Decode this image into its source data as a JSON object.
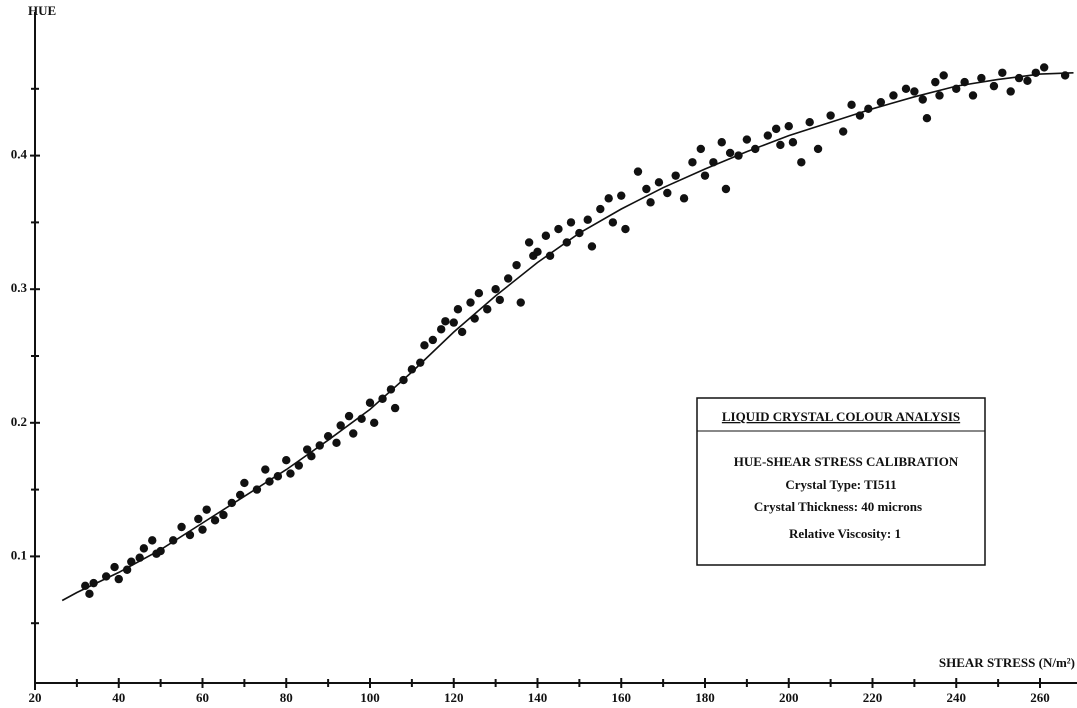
{
  "chart_data": {
    "type": "scatter",
    "ylabel": "HUE",
    "xlabel": "SHEAR STRESS (N/m²)",
    "xlim": [
      20,
      268
    ],
    "ylim": [
      0,
      0.5
    ],
    "xticks": [
      20,
      40,
      60,
      80,
      100,
      120,
      140,
      160,
      180,
      200,
      220,
      240,
      260
    ],
    "xminor_ticks": [
      30,
      50,
      70,
      90,
      110,
      130,
      150,
      170,
      190,
      210,
      230,
      250
    ],
    "yticks": [
      0.1,
      0.2,
      0.3,
      0.4
    ],
    "yminor_ticks": [
      0.05,
      0.15,
      0.25,
      0.35,
      0.45
    ],
    "color": "#111111",
    "points": {
      "x": [
        32,
        33,
        34,
        37,
        39,
        40,
        42,
        43,
        45,
        46,
        48,
        49,
        50,
        53,
        55,
        57,
        59,
        60,
        61,
        63,
        65,
        67,
        69,
        70,
        73,
        75,
        76,
        78,
        80,
        81,
        83,
        85,
        86,
        88,
        90,
        92,
        93,
        95,
        96,
        98,
        100,
        101,
        103,
        105,
        106,
        108,
        110,
        112,
        113,
        115,
        117,
        118,
        120,
        121,
        122,
        124,
        125,
        126,
        128,
        130,
        131,
        133,
        135,
        136,
        138,
        139,
        140,
        142,
        143,
        145,
        147,
        148,
        150,
        152,
        153,
        155,
        157,
        158,
        160,
        161,
        164,
        166,
        167,
        169,
        171,
        173,
        175,
        177,
        179,
        180,
        182,
        184,
        185,
        186,
        188,
        190,
        192,
        195,
        197,
        198,
        200,
        201,
        203,
        205,
        207,
        210,
        213,
        215,
        217,
        219,
        222,
        225,
        228,
        230,
        232,
        233,
        235,
        236,
        237,
        240,
        242,
        244,
        246,
        249,
        251,
        253,
        255,
        257,
        259,
        261,
        266
      ],
      "y": [
        0.078,
        0.072,
        0.08,
        0.085,
        0.092,
        0.083,
        0.09,
        0.096,
        0.099,
        0.106,
        0.112,
        0.102,
        0.104,
        0.112,
        0.122,
        0.116,
        0.128,
        0.12,
        0.135,
        0.127,
        0.131,
        0.14,
        0.146,
        0.155,
        0.15,
        0.165,
        0.156,
        0.16,
        0.172,
        0.162,
        0.168,
        0.18,
        0.175,
        0.183,
        0.19,
        0.185,
        0.198,
        0.205,
        0.192,
        0.203,
        0.215,
        0.2,
        0.218,
        0.225,
        0.211,
        0.232,
        0.24,
        0.245,
        0.258,
        0.262,
        0.27,
        0.276,
        0.275,
        0.285,
        0.268,
        0.29,
        0.278,
        0.297,
        0.285,
        0.3,
        0.292,
        0.308,
        0.318,
        0.29,
        0.335,
        0.325,
        0.328,
        0.34,
        0.325,
        0.345,
        0.335,
        0.35,
        0.342,
        0.352,
        0.332,
        0.36,
        0.368,
        0.35,
        0.37,
        0.345,
        0.388,
        0.375,
        0.365,
        0.38,
        0.372,
        0.385,
        0.368,
        0.395,
        0.405,
        0.385,
        0.395,
        0.41,
        0.375,
        0.402,
        0.4,
        0.412,
        0.405,
        0.415,
        0.42,
        0.408,
        0.422,
        0.41,
        0.395,
        0.425,
        0.405,
        0.43,
        0.418,
        0.438,
        0.43,
        0.435,
        0.44,
        0.445,
        0.45,
        0.448,
        0.442,
        0.428,
        0.455,
        0.445,
        0.46,
        0.45,
        0.455,
        0.445,
        0.458,
        0.452,
        0.462,
        0.448,
        0.458,
        0.456,
        0.462,
        0.466,
        0.46
      ]
    },
    "curve": {
      "x": [
        26.5,
        30,
        40,
        50,
        60,
        70,
        80,
        90,
        100,
        110,
        120,
        130,
        140,
        150,
        160,
        170,
        180,
        190,
        200,
        210,
        220,
        230,
        240,
        250,
        260,
        268
      ],
      "y": [
        0.067,
        0.073,
        0.088,
        0.105,
        0.125,
        0.145,
        0.165,
        0.187,
        0.21,
        0.238,
        0.268,
        0.295,
        0.32,
        0.342,
        0.36,
        0.376,
        0.39,
        0.403,
        0.415,
        0.425,
        0.435,
        0.444,
        0.452,
        0.457,
        0.461,
        0.462
      ]
    },
    "annotation": {
      "title": "LIQUID CRYSTAL COLOUR ANALYSIS",
      "lines": [
        "HUE-SHEAR STRESS CALIBRATION",
        "Crystal Type: TI511",
        "Crystal Thickness: 40 microns",
        "Relative Viscosity: 1"
      ]
    }
  }
}
